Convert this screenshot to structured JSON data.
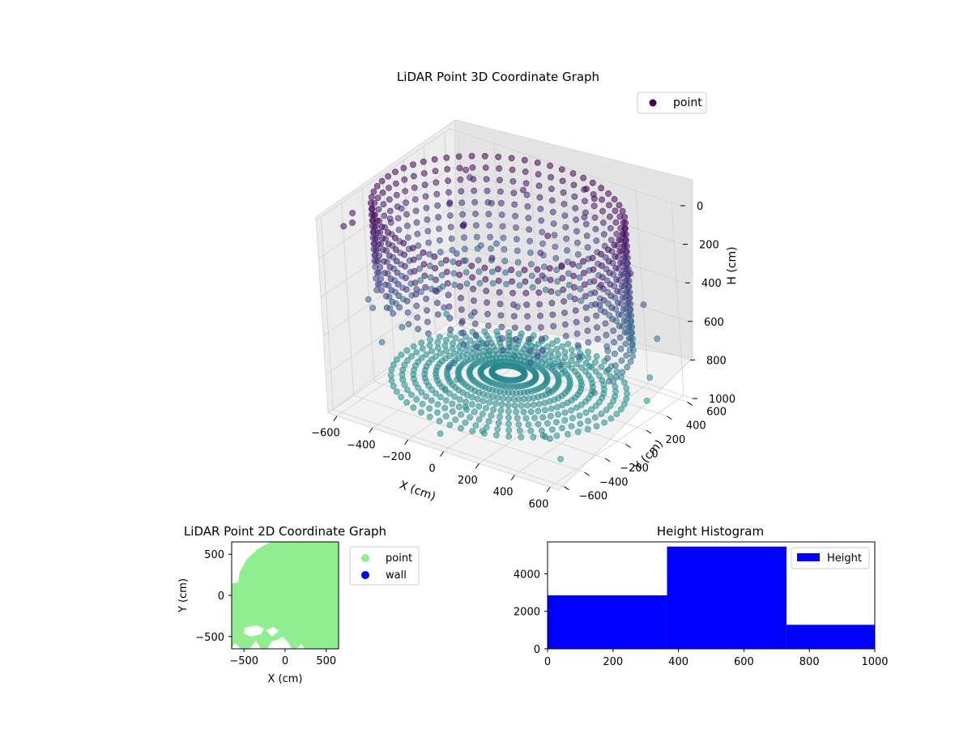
{
  "chart_data": [
    {
      "type": "scatter",
      "projection": "3d",
      "title": "LiDAR Point 3D Coordinate Graph",
      "xlabel": "X (cm)",
      "ylabel": "Y (cm)",
      "zlabel": "H (cm)",
      "xlim": [
        -650,
        650
      ],
      "ylim": [
        -650,
        650
      ],
      "zlim": [
        0,
        1000
      ],
      "z_inverted": true,
      "x_ticks": [
        "−600",
        "−400",
        "−200",
        "0",
        "200",
        "400",
        "600"
      ],
      "y_ticks": [
        "−600",
        "−400",
        "−200",
        "0",
        "200",
        "400",
        "600"
      ],
      "z_ticks": [
        "0",
        "200",
        "400",
        "600",
        "800",
        "1000"
      ],
      "grid": true,
      "legend": {
        "position": "top-right",
        "entries": [
          "point"
        ]
      },
      "series": [
        {
          "name": "point",
          "color_map": "viridis",
          "marker_color": "#440154",
          "description_values": {
            "ring_radius": 620,
            "ring_height": 0,
            "wall_height_range": [
              0,
              1000
            ]
          }
        }
      ]
    },
    {
      "type": "scatter",
      "title": "LiDAR Point 2D Coordinate Graph",
      "xlabel": "X (cm)",
      "ylabel": "Y (cm)",
      "xlim": [
        -650,
        650
      ],
      "ylim": [
        -650,
        650
      ],
      "x_ticks": [
        "−500",
        "0",
        "500"
      ],
      "y_ticks": [
        "500",
        "0",
        "−500"
      ],
      "legend": {
        "position": "outside-right",
        "entries": [
          "point",
          "wall"
        ]
      },
      "series": [
        {
          "name": "point",
          "color": "#90ee90"
        },
        {
          "name": "wall",
          "color": "#0000ff"
        }
      ]
    },
    {
      "type": "bar",
      "title": "Height Histogram",
      "bin_edges": [
        0,
        365,
        730,
        1000
      ],
      "values": [
        2850,
        5450,
        1280
      ],
      "xlim": [
        0,
        1000
      ],
      "ylim": [
        0,
        5700
      ],
      "x_ticks": [
        0,
        200,
        400,
        600,
        800,
        1000
      ],
      "y_ticks": [
        0,
        2000,
        4000
      ],
      "legend": {
        "position": "top-right",
        "entries": [
          "Height"
        ]
      },
      "series": [
        {
          "name": "Height",
          "color": "#0000ff"
        }
      ]
    }
  ]
}
